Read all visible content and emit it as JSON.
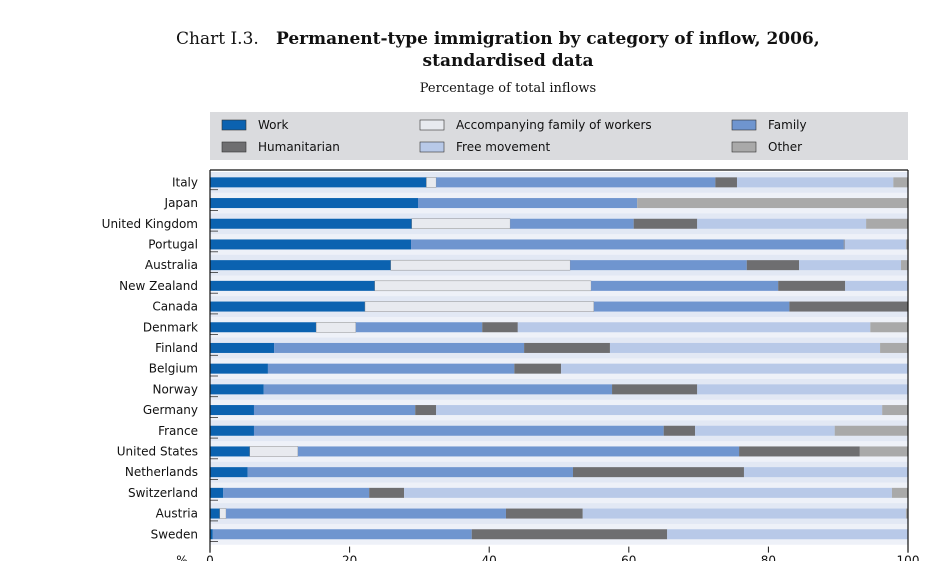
{
  "chart_data": {
    "type": "stacked-barh",
    "title_label": "Chart I.3.",
    "title_lines": [
      "Permanent-type immigration by category of inflow, 2006,",
      "standardised data"
    ],
    "subtitle": "Percentage of total inflows",
    "x_label": "%",
    "categories": [
      "Italy",
      "Japan",
      "United Kingdom",
      "Portugal",
      "Australia",
      "New Zealand",
      "Canada",
      "Denmark",
      "Finland",
      "Belgium",
      "Norway",
      "Germany",
      "France",
      "United States",
      "Netherlands",
      "Switzerland",
      "Austria",
      "Sweden"
    ],
    "series": [
      {
        "name": "Work",
        "color": "#0b62b0",
        "values": [
          31.0,
          29.8,
          28.9,
          28.8,
          25.9,
          23.6,
          22.2,
          15.2,
          9.2,
          8.3,
          7.7,
          6.3,
          6.3,
          5.7,
          5.4,
          1.9,
          1.4,
          0.4
        ]
      },
      {
        "name": "Accompanying family of workers",
        "color": "#e8eaef",
        "values": [
          1.4,
          0,
          14.1,
          0,
          25.7,
          31.0,
          32.8,
          5.7,
          0,
          0,
          0,
          0,
          0,
          6.9,
          0,
          0,
          0.9,
          0
        ]
      },
      {
        "name": "Family",
        "color": "#6f95cf",
        "values": [
          40.0,
          31.4,
          17.7,
          62.0,
          25.3,
          26.8,
          28.0,
          18.1,
          35.8,
          35.3,
          49.9,
          23.1,
          58.7,
          63.2,
          46.6,
          20.9,
          40.1,
          37.1
        ]
      },
      {
        "name": "Humanitarian",
        "color": "#6e6e70",
        "values": [
          3.1,
          0,
          9.1,
          0.1,
          7.5,
          9.6,
          17.0,
          5.1,
          12.3,
          6.7,
          12.2,
          3.0,
          4.5,
          17.3,
          24.5,
          5.0,
          11.0,
          28.0
        ]
      },
      {
        "name": "Free movement",
        "color": "#b8c9e8",
        "values": [
          22.4,
          0,
          24.2,
          8.8,
          14.6,
          9.0,
          0,
          50.5,
          38.7,
          49.7,
          30.2,
          63.9,
          20.0,
          0,
          23.5,
          69.9,
          46.3,
          34.5
        ]
      },
      {
        "name": "Other",
        "color": "#a9a9a9",
        "values": [
          2.1,
          38.8,
          6.0,
          0.4,
          1.0,
          0,
          0,
          5.4,
          4.0,
          0,
          0,
          3.7,
          10.5,
          6.9,
          0,
          2.3,
          0.3,
          0
        ]
      }
    ],
    "xlim": [
      0,
      100
    ],
    "xticks": [
      0,
      20,
      40,
      60,
      80,
      100
    ],
    "grid": false
  }
}
